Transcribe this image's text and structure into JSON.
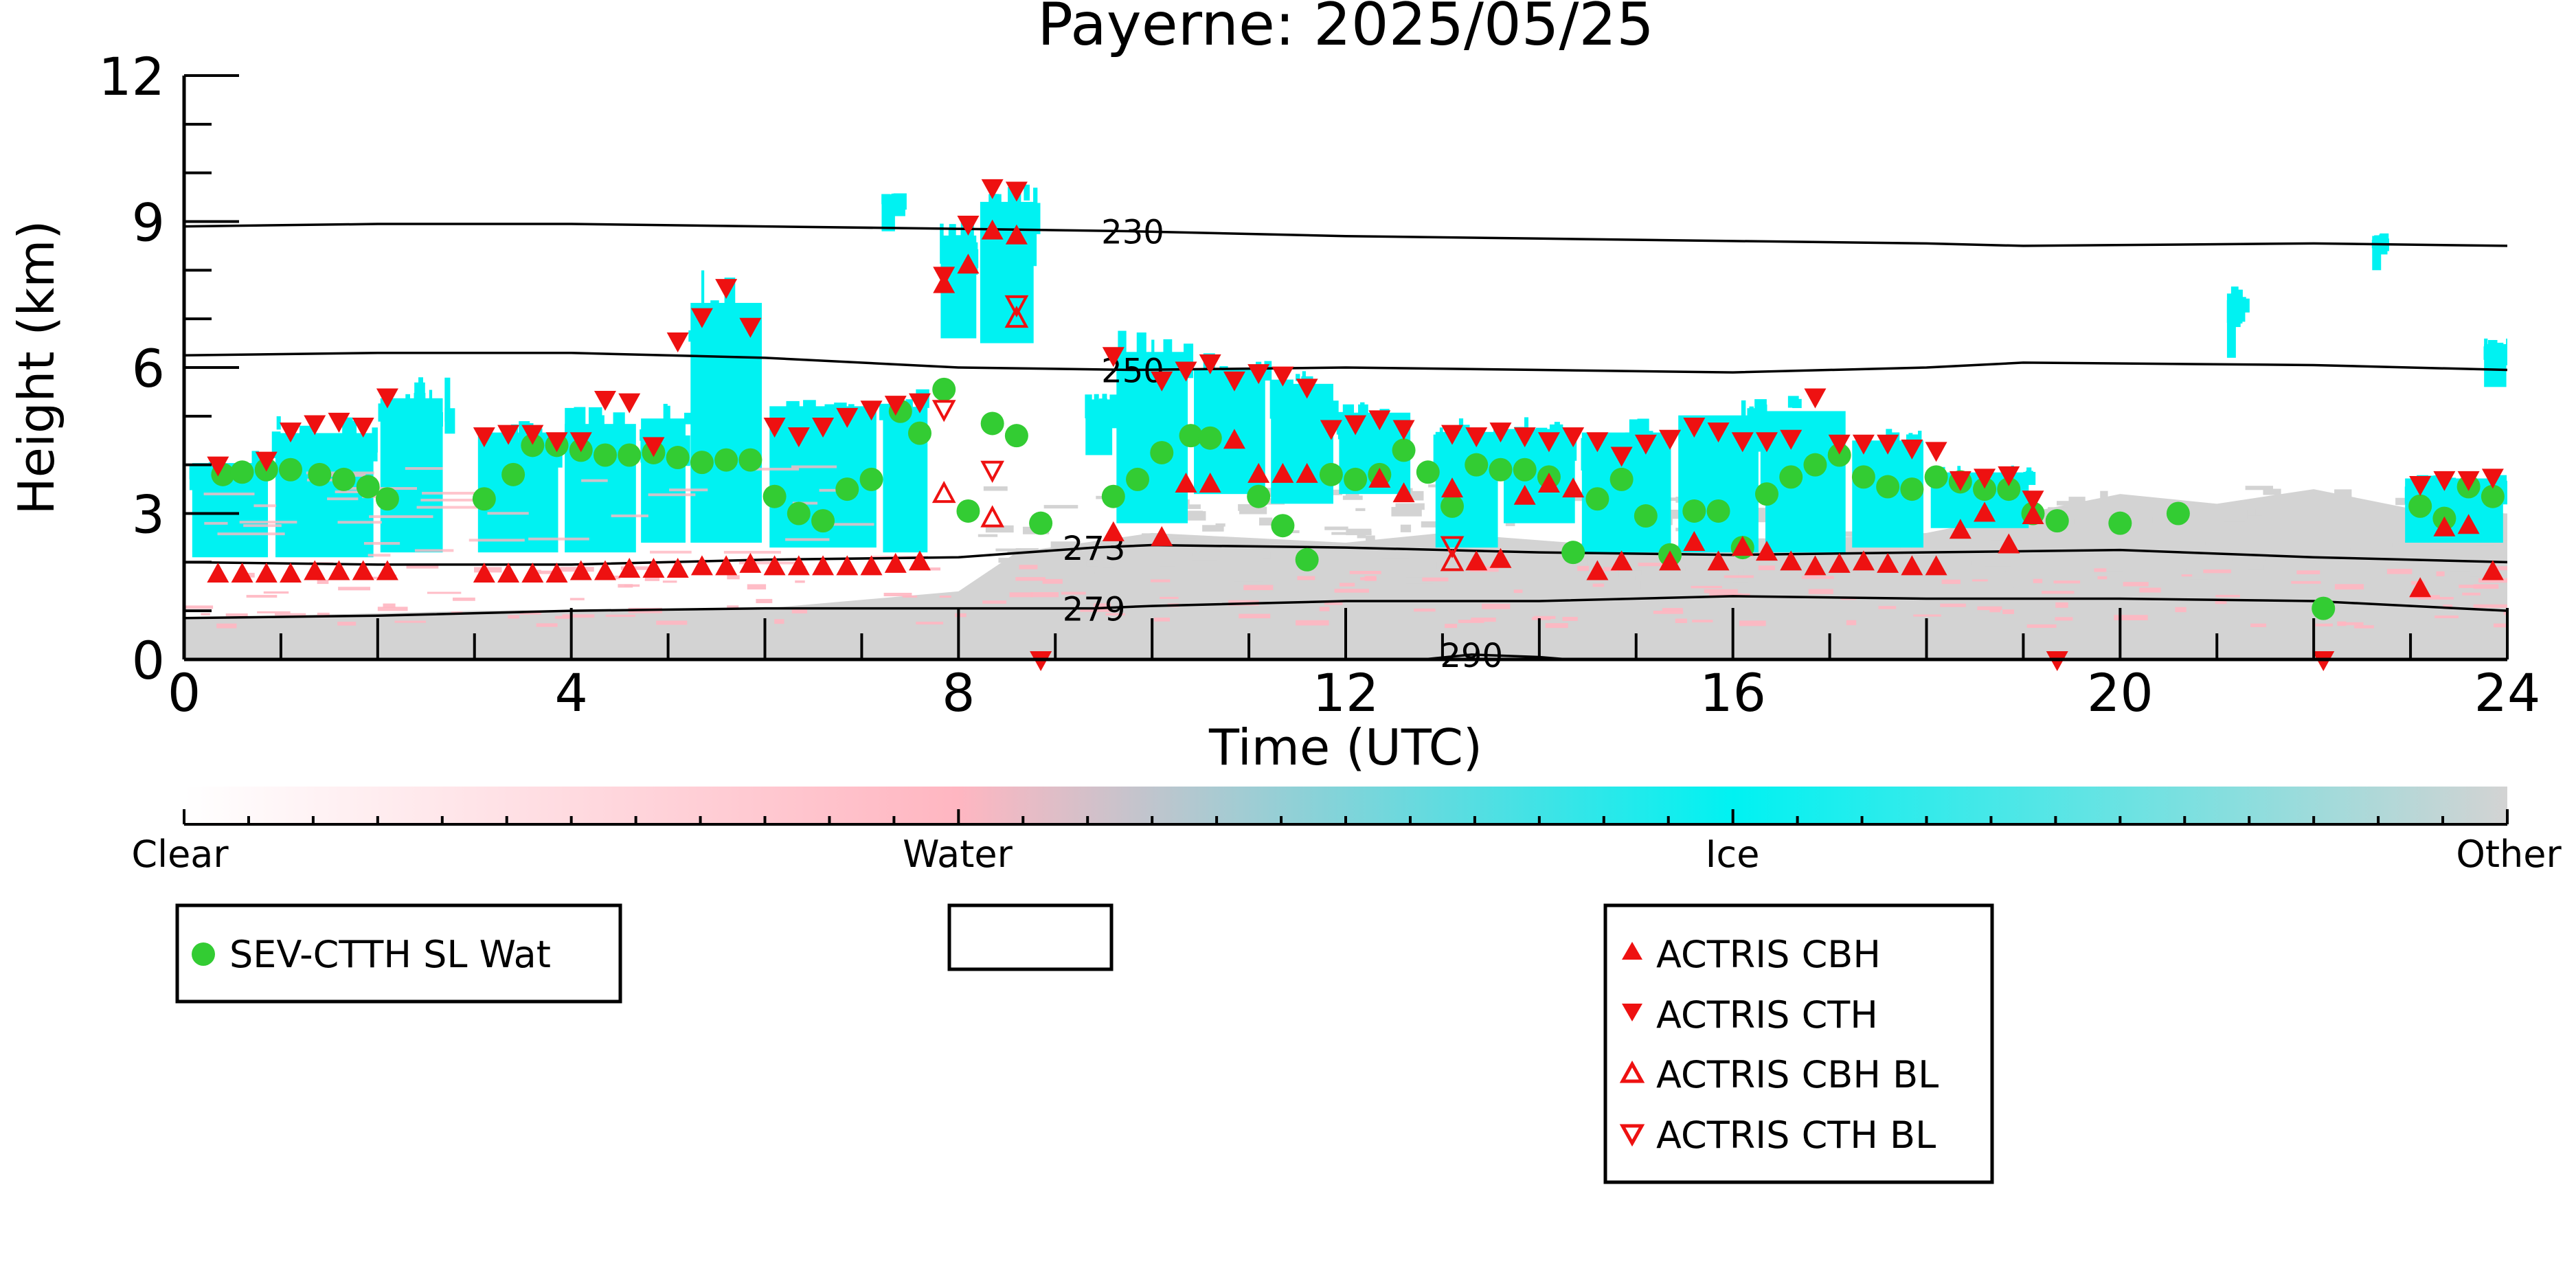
{
  "colors": {
    "ice": "#00f2f2",
    "water": "#ffb6c1",
    "other": "#d3d3d3",
    "clear": "#ffffff",
    "sev_marker": "#33cc33",
    "actris_marker": "#ee1111"
  },
  "colorbar": {
    "labels": [
      "Clear",
      "Water",
      "Ice",
      "Other"
    ],
    "stops": [
      0.0,
      0.333,
      0.667,
      1.0
    ]
  },
  "legend": {
    "sev_label": "SEV-CTTH SL Wat",
    "actris_cbh_label": "ACTRIS CBH",
    "actris_cth_label": "ACTRIS CTH",
    "actris_cbh_bl_label": "ACTRIS CBH BL",
    "actris_cth_bl_label": "ACTRIS CTH BL"
  },
  "chart_data": {
    "type": "scatter",
    "title": "Payerne: 2025/05/25",
    "xlabel": "Time (UTC)",
    "ylabel": "Height (km)",
    "xlim": [
      0,
      24
    ],
    "ylim": [
      0,
      12
    ],
    "xticks": [
      0,
      4,
      8,
      12,
      16,
      20,
      24
    ],
    "yticks": [
      0,
      3,
      6,
      9,
      12
    ],
    "temperature_contours": [
      {
        "label": "230",
        "label_x": 9.8,
        "points": [
          [
            0,
            8.9
          ],
          [
            2,
            8.95
          ],
          [
            4,
            8.95
          ],
          [
            6,
            8.9
          ],
          [
            8,
            8.85
          ],
          [
            9.8,
            8.8
          ],
          [
            12,
            8.7
          ],
          [
            14,
            8.65
          ],
          [
            16,
            8.6
          ],
          [
            18,
            8.55
          ],
          [
            19,
            8.5
          ],
          [
            22,
            8.55
          ],
          [
            24,
            8.5
          ]
        ]
      },
      {
        "label": "250",
        "label_x": 9.8,
        "points": [
          [
            0,
            6.25
          ],
          [
            2,
            6.3
          ],
          [
            4,
            6.3
          ],
          [
            6,
            6.2
          ],
          [
            8,
            6.0
          ],
          [
            9.8,
            5.95
          ],
          [
            12,
            6.0
          ],
          [
            14,
            5.95
          ],
          [
            16,
            5.9
          ],
          [
            18,
            6.0
          ],
          [
            19,
            6.1
          ],
          [
            22,
            6.05
          ],
          [
            24,
            5.95
          ]
        ]
      },
      {
        "label": "273",
        "label_x": 9.4,
        "points": [
          [
            0,
            2.0
          ],
          [
            2,
            1.95
          ],
          [
            4,
            1.95
          ],
          [
            6,
            2.05
          ],
          [
            8,
            2.1
          ],
          [
            9.4,
            2.3
          ],
          [
            10,
            2.35
          ],
          [
            12,
            2.3
          ],
          [
            14,
            2.2
          ],
          [
            16,
            2.15
          ],
          [
            18,
            2.2
          ],
          [
            20,
            2.25
          ],
          [
            22,
            2.1
          ],
          [
            24,
            2.0
          ]
        ]
      },
      {
        "label": "279",
        "label_x": 9.4,
        "points": [
          [
            0,
            0.85
          ],
          [
            2,
            0.9
          ],
          [
            4,
            1.0
          ],
          [
            6,
            1.05
          ],
          [
            8,
            1.05
          ],
          [
            9.4,
            1.05
          ],
          [
            10,
            1.1
          ],
          [
            12,
            1.2
          ],
          [
            14,
            1.2
          ],
          [
            16,
            1.3
          ],
          [
            18,
            1.25
          ],
          [
            20,
            1.25
          ],
          [
            22,
            1.2
          ],
          [
            24,
            1.0
          ]
        ]
      },
      {
        "label": "290",
        "label_x": 13.3,
        "points": [
          [
            12.8,
            0.0
          ],
          [
            13.3,
            0.1
          ],
          [
            14,
            0.05
          ],
          [
            14.3,
            0.0
          ]
        ]
      }
    ],
    "series": [
      {
        "name": "SEV-CTTH SL Wat",
        "marker": "circle",
        "points": [
          [
            0.4,
            3.8
          ],
          [
            0.6,
            3.85
          ],
          [
            0.85,
            3.9
          ],
          [
            1.1,
            3.9
          ],
          [
            1.4,
            3.8
          ],
          [
            1.65,
            3.7
          ],
          [
            1.9,
            3.55
          ],
          [
            2.1,
            3.3
          ],
          [
            3.1,
            3.3
          ],
          [
            3.4,
            3.8
          ],
          [
            3.6,
            4.4
          ],
          [
            3.85,
            4.4
          ],
          [
            4.1,
            4.3
          ],
          [
            4.35,
            4.2
          ],
          [
            4.6,
            4.2
          ],
          [
            4.85,
            4.25
          ],
          [
            5.1,
            4.15
          ],
          [
            5.35,
            4.05
          ],
          [
            5.6,
            4.1
          ],
          [
            5.85,
            4.1
          ],
          [
            6.1,
            3.35
          ],
          [
            6.35,
            3.0
          ],
          [
            6.6,
            2.85
          ],
          [
            6.85,
            3.5
          ],
          [
            7.1,
            3.7
          ],
          [
            7.4,
            5.1
          ],
          [
            7.6,
            4.65
          ],
          [
            7.85,
            5.55
          ],
          [
            8.1,
            3.05
          ],
          [
            8.35,
            4.85
          ],
          [
            8.6,
            4.6
          ],
          [
            8.85,
            2.8
          ],
          [
            9.6,
            3.35
          ],
          [
            9.85,
            3.7
          ],
          [
            10.1,
            4.25
          ],
          [
            10.4,
            4.6
          ],
          [
            10.6,
            4.55
          ],
          [
            11.1,
            3.35
          ],
          [
            11.35,
            2.75
          ],
          [
            11.6,
            2.05
          ],
          [
            11.85,
            3.8
          ],
          [
            12.1,
            3.7
          ],
          [
            12.35,
            3.8
          ],
          [
            12.6,
            4.3
          ],
          [
            12.85,
            3.85
          ],
          [
            13.1,
            3.15
          ],
          [
            13.35,
            4.0
          ],
          [
            13.6,
            3.9
          ],
          [
            13.85,
            3.9
          ],
          [
            14.1,
            3.75
          ],
          [
            14.35,
            2.2
          ],
          [
            14.6,
            3.3
          ],
          [
            14.85,
            3.7
          ],
          [
            15.1,
            2.95
          ],
          [
            15.35,
            2.15
          ],
          [
            15.6,
            3.05
          ],
          [
            15.85,
            3.05
          ],
          [
            16.1,
            2.3
          ],
          [
            16.35,
            3.4
          ],
          [
            16.6,
            3.75
          ],
          [
            16.85,
            4.0
          ],
          [
            17.1,
            4.2
          ],
          [
            17.35,
            3.75
          ],
          [
            17.6,
            3.55
          ],
          [
            17.85,
            3.5
          ],
          [
            18.1,
            3.75
          ],
          [
            18.35,
            3.65
          ],
          [
            18.6,
            3.5
          ],
          [
            18.85,
            3.5
          ],
          [
            19.1,
            3.0
          ],
          [
            19.35,
            2.85
          ],
          [
            20.0,
            2.8
          ],
          [
            20.6,
            3.0
          ],
          [
            22.1,
            1.05
          ],
          [
            23.1,
            3.15
          ],
          [
            23.35,
            2.9
          ],
          [
            23.6,
            3.55
          ],
          [
            23.85,
            3.35
          ]
        ]
      },
      {
        "name": "ACTRIS CBH",
        "marker": "triangle-up",
        "points": [
          [
            0.35,
            1.75
          ],
          [
            0.6,
            1.75
          ],
          [
            0.85,
            1.75
          ],
          [
            1.1,
            1.75
          ],
          [
            1.35,
            1.8
          ],
          [
            1.6,
            1.8
          ],
          [
            1.85,
            1.8
          ],
          [
            2.1,
            1.8
          ],
          [
            3.1,
            1.75
          ],
          [
            3.35,
            1.75
          ],
          [
            3.6,
            1.75
          ],
          [
            3.85,
            1.75
          ],
          [
            4.1,
            1.8
          ],
          [
            4.35,
            1.8
          ],
          [
            4.6,
            1.85
          ],
          [
            4.85,
            1.85
          ],
          [
            5.1,
            1.85
          ],
          [
            5.35,
            1.9
          ],
          [
            5.6,
            1.9
          ],
          [
            5.85,
            1.95
          ],
          [
            6.1,
            1.9
          ],
          [
            6.35,
            1.9
          ],
          [
            6.6,
            1.9
          ],
          [
            6.85,
            1.9
          ],
          [
            7.1,
            1.9
          ],
          [
            7.35,
            1.95
          ],
          [
            7.6,
            2.0
          ],
          [
            7.85,
            7.7
          ],
          [
            8.1,
            8.1
          ],
          [
            8.35,
            8.8
          ],
          [
            8.6,
            8.7
          ],
          [
            9.6,
            2.6
          ],
          [
            10.1,
            2.5
          ],
          [
            10.35,
            3.6
          ],
          [
            10.6,
            3.6
          ],
          [
            10.85,
            4.5
          ],
          [
            11.1,
            3.8
          ],
          [
            11.35,
            3.8
          ],
          [
            11.6,
            3.8
          ],
          [
            12.35,
            3.7
          ],
          [
            12.6,
            3.4
          ],
          [
            13.1,
            3.5
          ],
          [
            13.35,
            2.0
          ],
          [
            13.6,
            2.05
          ],
          [
            13.85,
            3.35
          ],
          [
            14.1,
            3.6
          ],
          [
            14.35,
            3.5
          ],
          [
            14.6,
            1.8
          ],
          [
            14.85,
            2.0
          ],
          [
            15.35,
            2.0
          ],
          [
            15.6,
            2.4
          ],
          [
            15.85,
            2.0
          ],
          [
            16.1,
            2.3
          ],
          [
            16.35,
            2.2
          ],
          [
            16.6,
            2.0
          ],
          [
            16.85,
            1.9
          ],
          [
            17.1,
            1.95
          ],
          [
            17.35,
            2.0
          ],
          [
            17.6,
            1.95
          ],
          [
            17.85,
            1.9
          ],
          [
            18.1,
            1.9
          ],
          [
            18.35,
            2.65
          ],
          [
            18.6,
            3.0
          ],
          [
            18.85,
            2.35
          ],
          [
            19.1,
            2.95
          ],
          [
            23.1,
            1.45
          ],
          [
            23.35,
            2.7
          ],
          [
            23.6,
            2.75
          ],
          [
            23.85,
            1.8
          ]
        ]
      },
      {
        "name": "ACTRIS CTH",
        "marker": "triangle-down",
        "points": [
          [
            0.35,
            4.0
          ],
          [
            0.85,
            4.1
          ],
          [
            1.1,
            4.7
          ],
          [
            1.35,
            4.85
          ],
          [
            1.6,
            4.9
          ],
          [
            1.85,
            4.8
          ],
          [
            2.1,
            5.4
          ],
          [
            3.1,
            4.6
          ],
          [
            3.35,
            4.65
          ],
          [
            3.6,
            4.65
          ],
          [
            3.85,
            4.5
          ],
          [
            4.1,
            4.5
          ],
          [
            4.35,
            5.35
          ],
          [
            4.6,
            5.3
          ],
          [
            4.85,
            4.4
          ],
          [
            5.1,
            6.55
          ],
          [
            5.35,
            7.05
          ],
          [
            5.6,
            7.65
          ],
          [
            5.85,
            6.85
          ],
          [
            6.1,
            4.8
          ],
          [
            6.35,
            4.6
          ],
          [
            6.6,
            4.8
          ],
          [
            6.85,
            5.0
          ],
          [
            7.1,
            5.15
          ],
          [
            7.35,
            5.25
          ],
          [
            7.6,
            5.3
          ],
          [
            7.85,
            7.9
          ],
          [
            8.1,
            8.95
          ],
          [
            8.35,
            9.7
          ],
          [
            8.6,
            9.65
          ],
          [
            8.85,
            0.0
          ],
          [
            9.6,
            6.25
          ],
          [
            10.1,
            5.75
          ],
          [
            10.35,
            5.95
          ],
          [
            10.6,
            6.1
          ],
          [
            10.85,
            5.75
          ],
          [
            11.1,
            5.9
          ],
          [
            11.35,
            5.85
          ],
          [
            11.6,
            5.6
          ],
          [
            11.85,
            4.75
          ],
          [
            12.1,
            4.85
          ],
          [
            12.35,
            4.95
          ],
          [
            12.6,
            4.75
          ],
          [
            13.1,
            4.65
          ],
          [
            13.35,
            4.6
          ],
          [
            13.6,
            4.7
          ],
          [
            13.85,
            4.6
          ],
          [
            14.1,
            4.5
          ],
          [
            14.35,
            4.6
          ],
          [
            14.6,
            4.5
          ],
          [
            14.85,
            4.2
          ],
          [
            15.1,
            4.45
          ],
          [
            15.35,
            4.55
          ],
          [
            15.6,
            4.8
          ],
          [
            15.85,
            4.7
          ],
          [
            16.1,
            4.5
          ],
          [
            16.35,
            4.5
          ],
          [
            16.6,
            4.55
          ],
          [
            16.85,
            5.4
          ],
          [
            17.1,
            4.45
          ],
          [
            17.35,
            4.45
          ],
          [
            17.6,
            4.45
          ],
          [
            17.85,
            4.35
          ],
          [
            18.1,
            4.3
          ],
          [
            18.35,
            3.7
          ],
          [
            18.6,
            3.75
          ],
          [
            18.85,
            3.8
          ],
          [
            19.1,
            3.3
          ],
          [
            19.35,
            0.0
          ],
          [
            22.1,
            0.0
          ],
          [
            23.1,
            3.6
          ],
          [
            23.35,
            3.7
          ],
          [
            23.6,
            3.7
          ],
          [
            23.85,
            3.75
          ]
        ]
      },
      {
        "name": "ACTRIS CBH BL",
        "marker": "triangle-up-open",
        "points": [
          [
            7.85,
            3.4
          ],
          [
            8.35,
            2.9
          ],
          [
            8.6,
            7.0
          ],
          [
            13.1,
            2.0
          ]
        ]
      },
      {
        "name": "ACTRIS CTH BL",
        "marker": "triangle-down-open",
        "points": [
          [
            7.85,
            5.15
          ],
          [
            8.35,
            3.9
          ],
          [
            8.6,
            7.3
          ],
          [
            13.1,
            2.35
          ]
        ]
      }
    ],
    "legend_position": "below"
  }
}
